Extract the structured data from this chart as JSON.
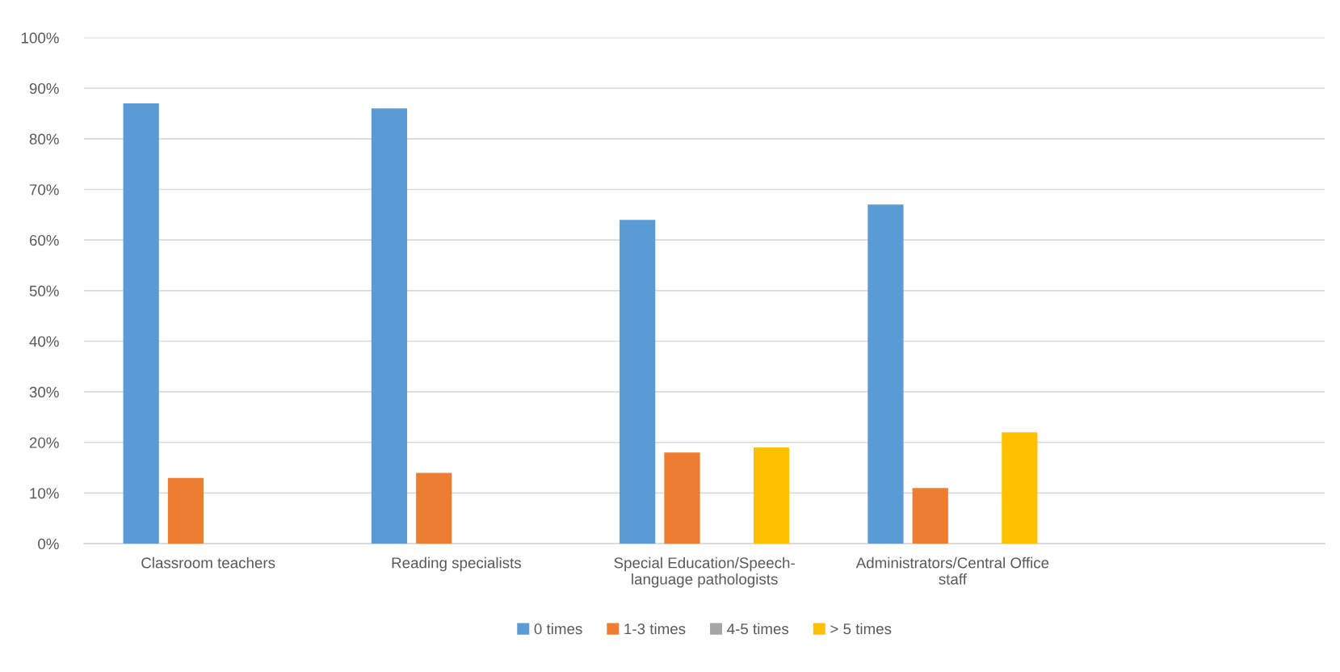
{
  "chart_data": {
    "type": "bar",
    "categories": [
      "Classroom teachers",
      "Reading specialists",
      "Special Education/Speech-\nlanguage pathologists",
      "Administrators/Central Office\nstaff",
      null
    ],
    "series": [
      {
        "name": "0 times",
        "color": "#5b9bd5",
        "values": [
          87,
          86,
          64,
          67,
          null
        ]
      },
      {
        "name": "1-3 times",
        "color": "#ed7d31",
        "values": [
          13,
          14,
          18,
          11,
          null
        ]
      },
      {
        "name": "4-5 times",
        "color": "#a5a5a5",
        "values": [
          null,
          null,
          null,
          null,
          null
        ]
      },
      {
        "name": "> 5 times",
        "color": "#ffc000",
        "values": [
          null,
          null,
          19,
          22,
          null
        ]
      }
    ],
    "ylim": [
      0,
      100
    ],
    "yticks": [
      {
        "value": 0,
        "label": "0%"
      },
      {
        "value": 10,
        "label": "10%"
      },
      {
        "value": 20,
        "label": "20%"
      },
      {
        "value": 30,
        "label": "30%"
      },
      {
        "value": 40,
        "label": "40%"
      },
      {
        "value": 50,
        "label": "50%"
      },
      {
        "value": 60,
        "label": "60%"
      },
      {
        "value": 70,
        "label": "70%"
      },
      {
        "value": 80,
        "label": "80%"
      },
      {
        "value": 90,
        "label": "90%"
      },
      {
        "value": 100,
        "label": "100%"
      }
    ],
    "grid": "y",
    "legend": "bottom"
  }
}
